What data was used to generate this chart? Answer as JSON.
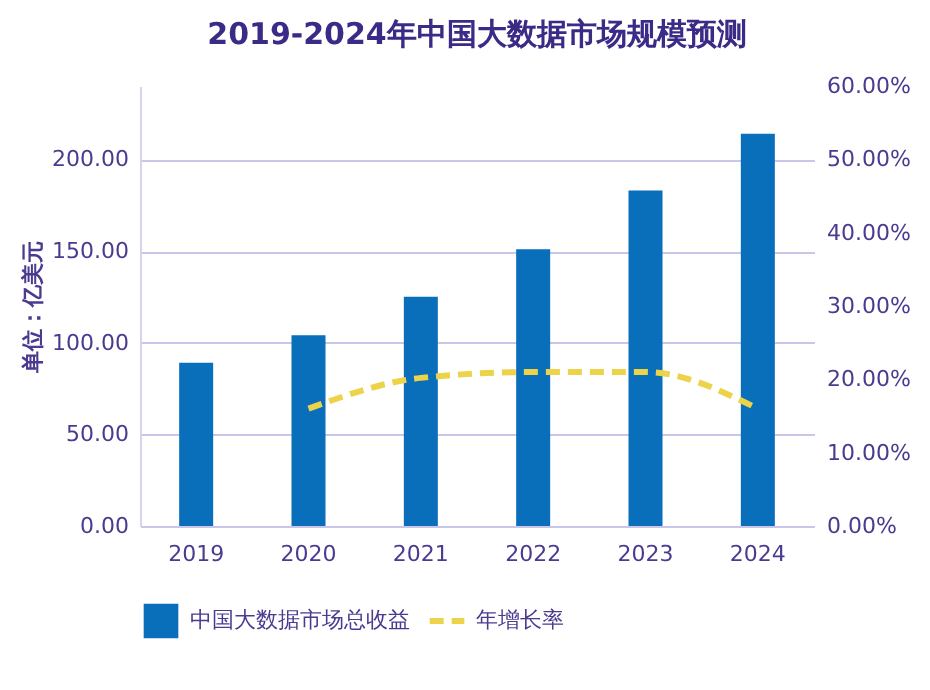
{
  "chart_data": {
    "type": "bar",
    "title": "2019-2024年中国大数据市场规模预测",
    "ylabel": "单位：亿美元",
    "categories": [
      "2019",
      "2020",
      "2021",
      "2022",
      "2023",
      "2024"
    ],
    "series": [
      {
        "name": "中国大数据市场总收益",
        "color": "#0a6fba",
        "values": [
          89,
          104,
          125,
          151,
          183,
          214
        ]
      },
      {
        "name": "年增长率",
        "type": "line",
        "axis": "y2",
        "line_style": "dashed",
        "color": "#ecd34a",
        "values": [
          null,
          16,
          20.2,
          21,
          21,
          16
        ]
      }
    ],
    "ylim": [
      0,
      240
    ],
    "yticks": [
      {
        "value": 0,
        "label": "0.00"
      },
      {
        "value": 50,
        "label": "50.00"
      },
      {
        "value": 100,
        "label": "100.00"
      },
      {
        "value": 150,
        "label": "150.00"
      },
      {
        "value": 200,
        "label": "200.00"
      }
    ],
    "y2lim": [
      0,
      60
    ],
    "y2ticks": [
      {
        "value": 0,
        "label": "0.00%"
      },
      {
        "value": 10,
        "label": "10.00%"
      },
      {
        "value": 20,
        "label": "20.00%"
      },
      {
        "value": 30,
        "label": "30.00%"
      },
      {
        "value": 40,
        "label": "40.00%"
      },
      {
        "value": 50,
        "label": "50.00%"
      },
      {
        "value": 60,
        "label": "60.00%"
      }
    ],
    "grid": "y",
    "legend": "bottom"
  }
}
